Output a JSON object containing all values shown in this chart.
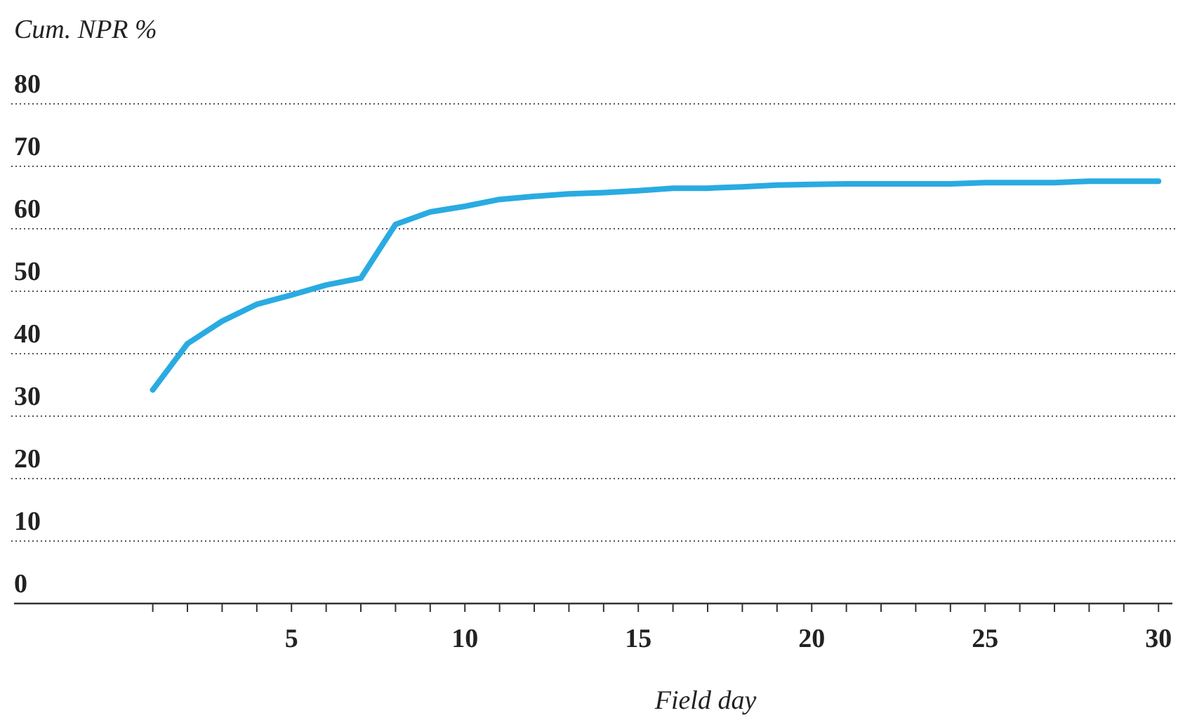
{
  "chart_data": {
    "type": "line",
    "ylabel": "Cum. NPR %",
    "xlabel": "Field day",
    "x": [
      1,
      2,
      3,
      4,
      5,
      6,
      7,
      8,
      9,
      10,
      11,
      12,
      13,
      14,
      15,
      16,
      17,
      18,
      19,
      20,
      21,
      22,
      23,
      24,
      25,
      26,
      27,
      28,
      29,
      30
    ],
    "series": [
      {
        "color": "#29abe2",
        "values": [
          34.2,
          41.6,
          45.2,
          47.9,
          49.4,
          51,
          52.1,
          60.7,
          62.7,
          63.6,
          64.7,
          65.2,
          65.6,
          65.8,
          66.1,
          66.5,
          66.5,
          66.7,
          67,
          67.1,
          67.2,
          67.2,
          67.2,
          67.2,
          67.4,
          67.4,
          67.4,
          67.6,
          67.6,
          67.6
        ]
      }
    ],
    "xlim": [
      -3,
      30.4
    ],
    "ylim": [
      0,
      80
    ],
    "xticks": [
      {
        "value": 1,
        "label": null
      },
      {
        "value": 2,
        "label": null
      },
      {
        "value": 3,
        "label": null
      },
      {
        "value": 4,
        "label": null
      },
      5,
      {
        "value": 6,
        "label": null
      },
      {
        "value": 7,
        "label": null
      },
      {
        "value": 8,
        "label": null
      },
      {
        "value": 9,
        "label": null
      },
      10,
      {
        "value": 11,
        "label": null
      },
      {
        "value": 12,
        "label": null
      },
      {
        "value": 13,
        "label": null
      },
      {
        "value": 14,
        "label": null
      },
      15,
      {
        "value": 16,
        "label": null
      },
      {
        "value": 17,
        "label": null
      },
      {
        "value": 18,
        "label": null
      },
      {
        "value": 19,
        "label": null
      },
      20,
      {
        "value": 21,
        "label": null
      },
      {
        "value": 22,
        "label": null
      },
      {
        "value": 23,
        "label": null
      },
      {
        "value": 24,
        "label": null
      },
      25,
      {
        "value": 26,
        "label": null
      },
      {
        "value": 27,
        "label": null
      },
      {
        "value": 28,
        "label": null
      },
      {
        "value": 29,
        "label": null
      },
      30
    ],
    "yticks": [
      0,
      10,
      20,
      30,
      40,
      50,
      60,
      70,
      80
    ],
    "grid": "y",
    "marker": "none",
    "line_style": "solid"
  }
}
